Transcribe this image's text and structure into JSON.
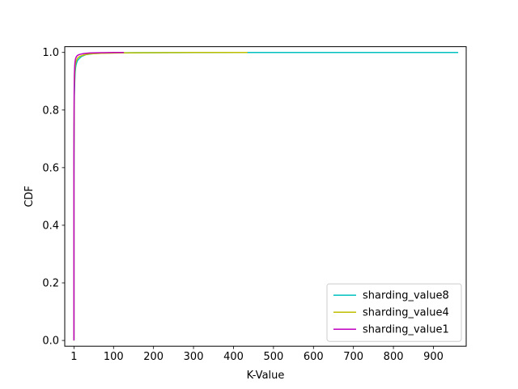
{
  "chart_data": {
    "type": "line",
    "xlabel": "K-Value",
    "ylabel": "CDF",
    "xlim": [
      -22,
      982
    ],
    "ylim": [
      -0.02,
      1.02
    ],
    "xticks": [
      1,
      100,
      200,
      300,
      400,
      500,
      600,
      700,
      800,
      900
    ],
    "xtick_labels": [
      "1",
      "100",
      "200",
      "300",
      "400",
      "500",
      "600",
      "700",
      "800",
      "900"
    ],
    "yticks": [
      0.0,
      0.2,
      0.4,
      0.6,
      0.8,
      1.0
    ],
    "ytick_labels": [
      "0.0",
      "0.2",
      "0.4",
      "0.6",
      "0.8",
      "1.0"
    ],
    "grid": false,
    "legend_position": "bottom-right",
    "series": [
      {
        "name": "sharding_value8",
        "color": "#00bfbf",
        "x": [
          1,
          1,
          1.5,
          2,
          3,
          4,
          5,
          6,
          8,
          10,
          15,
          20,
          30,
          50,
          80,
          150,
          300,
          450,
          600,
          810,
          962
        ],
        "y": [
          0,
          0.55,
          0.75,
          0.85,
          0.9,
          0.93,
          0.945,
          0.955,
          0.965,
          0.972,
          0.98,
          0.986,
          0.992,
          0.996,
          0.998,
          0.999,
          0.9995,
          0.9997,
          0.9998,
          0.9999,
          1.0
        ]
      },
      {
        "name": "sharding_value4",
        "color": "#bfbf00",
        "x": [
          1,
          1,
          1.5,
          2,
          3,
          4,
          5,
          7,
          10,
          15,
          25,
          40,
          70,
          120,
          200,
          300,
          435
        ],
        "y": [
          0,
          0.6,
          0.8,
          0.88,
          0.925,
          0.95,
          0.962,
          0.972,
          0.98,
          0.986,
          0.991,
          0.995,
          0.997,
          0.9985,
          0.9993,
          0.9997,
          1.0
        ]
      },
      {
        "name": "sharding_value1",
        "color": "#bf00bf",
        "x": [
          1,
          1,
          1.5,
          2,
          3,
          4,
          5,
          7,
          10,
          15,
          25,
          40,
          70,
          100,
          126
        ],
        "y": [
          0,
          0.65,
          0.85,
          0.92,
          0.955,
          0.97,
          0.978,
          0.985,
          0.99,
          0.993,
          0.996,
          0.998,
          0.9992,
          0.9997,
          1.0
        ]
      }
    ]
  }
}
